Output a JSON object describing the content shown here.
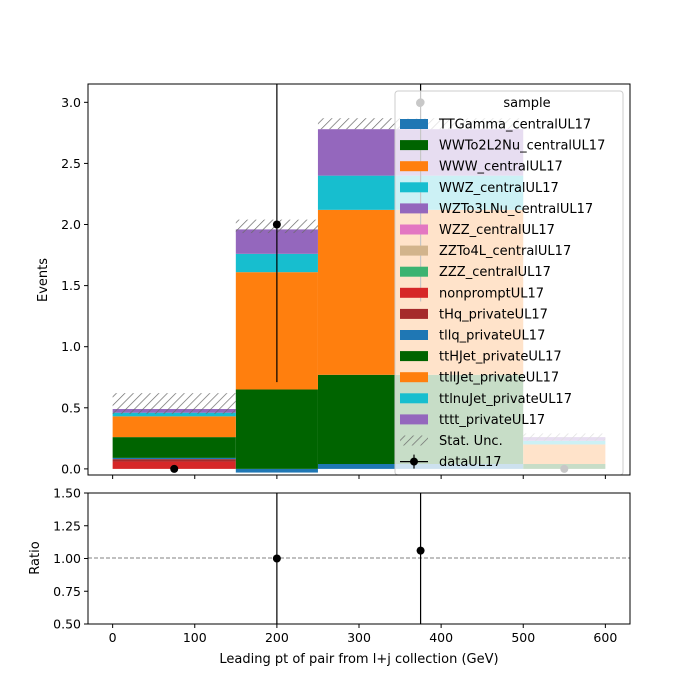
{
  "chart_data": {
    "type": "bar",
    "stacked": true,
    "xlabel": "Leading pt of pair from l+j collection (GeV)",
    "bins": [
      [
        0,
        150
      ],
      [
        150,
        250
      ],
      [
        250,
        500
      ],
      [
        500,
        600
      ]
    ],
    "top": {
      "ylabel": "Events",
      "ylim": [
        -0.05,
        3.15
      ],
      "yticks": [
        0.0,
        0.5,
        1.0,
        1.5,
        2.0,
        2.5,
        3.0
      ],
      "ytick_labels": [
        "0.0",
        "0.5",
        "1.0",
        "1.5",
        "2.0",
        "2.5",
        "3.0"
      ],
      "grid": false
    },
    "ratio": {
      "ylabel": "Ratio",
      "ylim": [
        0.5,
        1.5
      ],
      "yticks": [
        0.5,
        0.75,
        1.0,
        1.25,
        1.5
      ],
      "ytick_labels": [
        "0.50",
        "0.75",
        "1.00",
        "1.25",
        "1.50"
      ],
      "reference_line": 1.0,
      "points": [
        {
          "x": 200,
          "y": 1.0,
          "yerr_low": 0.5,
          "yerr_high": 0.5
        },
        {
          "x": 375,
          "y": 1.06,
          "yerr_low": 0.56,
          "yerr_high": 0.44
        }
      ]
    },
    "xticks": [
      0,
      100,
      200,
      300,
      400,
      500,
      600
    ],
    "xtick_labels": [
      "0",
      "100",
      "200",
      "300",
      "400",
      "500",
      "600"
    ],
    "xlim": [
      -30,
      630
    ],
    "legend": {
      "title": "sample",
      "position": "upper right"
    },
    "series": [
      {
        "name": "TTGamma_centralUL17",
        "color": "#1f77b4",
        "values": [
          0.0,
          0.0,
          0.0,
          0.0
        ]
      },
      {
        "name": "WWTo2L2Nu_centralUL17",
        "color": "#006400",
        "values": [
          0.0,
          0.0,
          0.0,
          0.0
        ]
      },
      {
        "name": "WWW_centralUL17",
        "color": "#ff7f0e",
        "values": [
          0.0,
          0.0,
          0.0,
          0.0
        ]
      },
      {
        "name": "WWZ_centralUL17",
        "color": "#17becf",
        "values": [
          0.0,
          0.0,
          0.0,
          0.0
        ]
      },
      {
        "name": "WZTo3LNu_centralUL17",
        "color": "#9467bd",
        "values": [
          0.0,
          0.0,
          0.0,
          0.0
        ]
      },
      {
        "name": "WZZ_centralUL17",
        "color": "#e377c2",
        "values": [
          0.0,
          0.0,
          0.0,
          0.0
        ]
      },
      {
        "name": "ZZTo4L_centralUL17",
        "color": "#d2b48c",
        "values": [
          0.0,
          0.0,
          0.0,
          0.0
        ]
      },
      {
        "name": "ZZZ_centralUL17",
        "color": "#3cb371",
        "values": [
          0.0,
          0.0,
          0.0,
          0.0
        ]
      },
      {
        "name": "nonpromptUL17",
        "color": "#d62728",
        "values": [
          0.06,
          0.0,
          0.0,
          0.0
        ]
      },
      {
        "name": "tHq_privateUL17",
        "color": "#a52a2a",
        "values": [
          0.02,
          0.0,
          0.0,
          0.0
        ]
      },
      {
        "name": "tllq_privateUL17",
        "color": "#1f77b4",
        "values": [
          0.01,
          -0.03,
          0.04,
          0.0
        ]
      },
      {
        "name": "ttHJet_privateUL17",
        "color": "#006400",
        "values": [
          0.17,
          0.65,
          0.73,
          0.04
        ]
      },
      {
        "name": "ttllJet_privateUL17",
        "color": "#ff7f0e",
        "values": [
          0.17,
          0.96,
          1.35,
          0.16
        ]
      },
      {
        "name": "ttlnuJet_privateUL17",
        "color": "#17becf",
        "values": [
          0.03,
          0.15,
          0.28,
          0.03
        ]
      },
      {
        "name": "tttt_privateUL17",
        "color": "#9467bd",
        "values": [
          0.03,
          0.2,
          0.38,
          0.03
        ]
      }
    ],
    "stat_unc": {
      "name": "Stat. Unc.",
      "lower": [
        0.45,
        1.93,
        2.78,
        0.23
      ],
      "upper": [
        0.62,
        2.04,
        2.87,
        0.29
      ]
    },
    "data": {
      "name": "dataUL17",
      "points": [
        {
          "x": 75,
          "y": 0.0,
          "yerr_low": 0.0,
          "yerr_high": 0.0
        },
        {
          "x": 200,
          "y": 2.0,
          "yerr_low": 1.29,
          "yerr_high": 2.0
        },
        {
          "x": 375,
          "y": 3.0,
          "yerr_low": 1.63,
          "yerr_high": 2.0
        },
        {
          "x": 550,
          "y": 0.0,
          "yerr_low": 0.0,
          "yerr_high": 0.0
        }
      ]
    }
  }
}
